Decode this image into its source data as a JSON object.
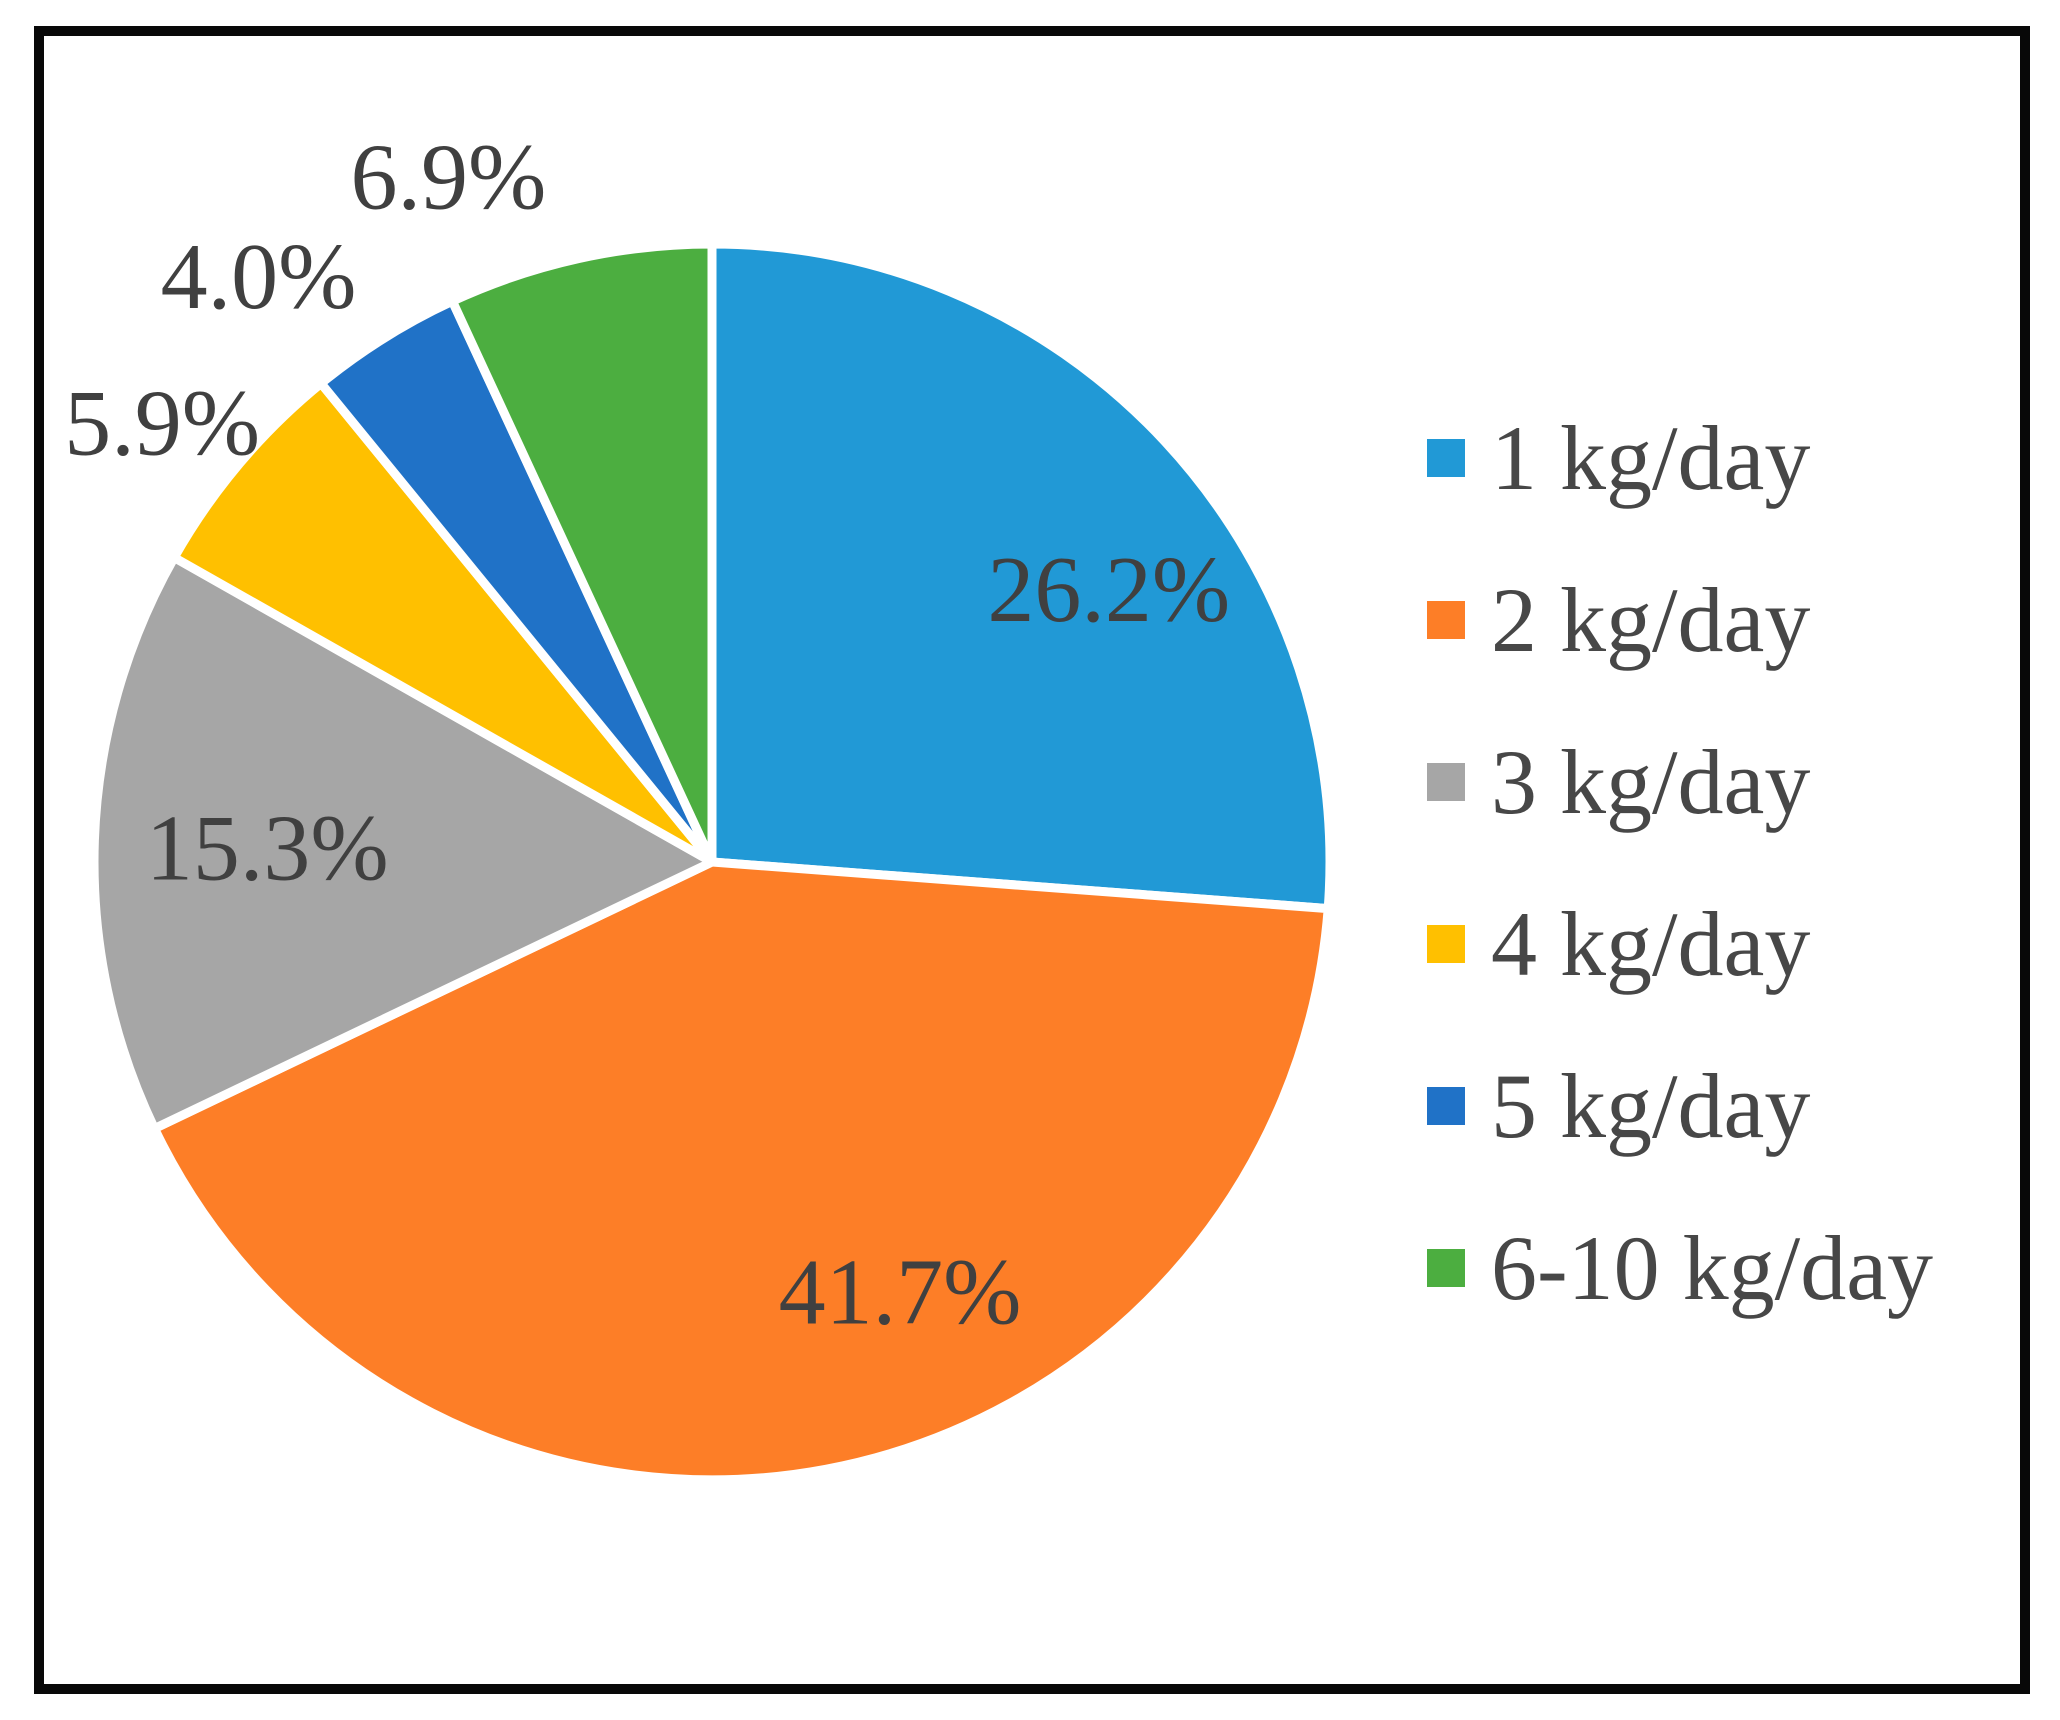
{
  "figure": {
    "background": "#ffffff",
    "border_color": "#080808"
  },
  "chart_data": {
    "type": "pie",
    "title": "",
    "categories": [
      "1 kg/day",
      "2 kg/day",
      "3 kg/day",
      "4 kg/day",
      "5 kg/day",
      "6-10 kg/day"
    ],
    "values": [
      26.2,
      41.7,
      15.3,
      5.9,
      4.0,
      6.9
    ],
    "data_labels": [
      "26.2%",
      "41.7%",
      "15.3%",
      "5.9%",
      "4.0%",
      "6.9%"
    ],
    "colors": [
      "#2199D6",
      "#FD7E27",
      "#A6A6A6",
      "#FFC000",
      "#2072C7",
      "#4CAE40"
    ],
    "start_angle_deg": 0,
    "direction": "clockwise",
    "legend_position": "right",
    "label_color": "#404040",
    "legend_text_color": "#474747",
    "slice_border_color": "#ffffff",
    "grid": false
  }
}
